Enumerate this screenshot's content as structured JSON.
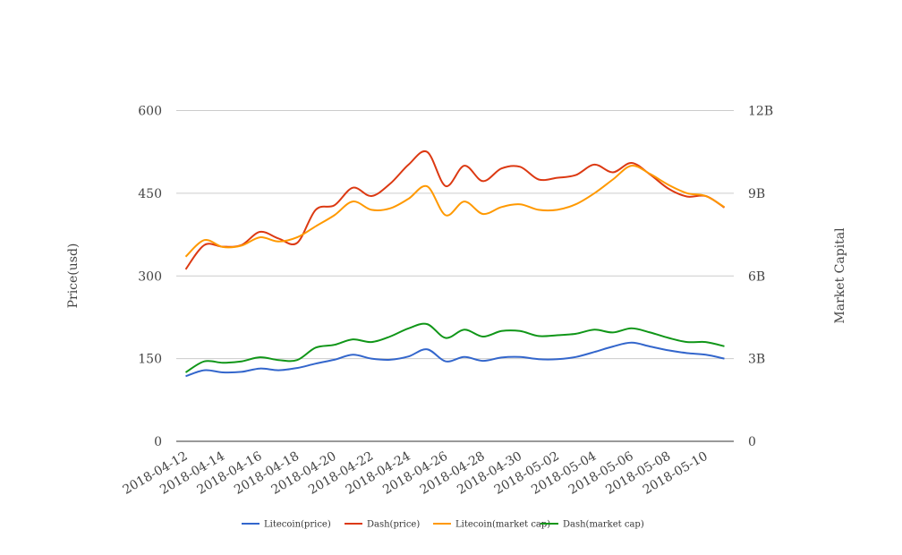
{
  "chart_data": {
    "type": "line",
    "xlabel": "",
    "ylabel": "Price(usd)",
    "y2label": "Market Capital",
    "ylim": [
      0,
      600
    ],
    "y2lim": [
      0,
      12000000000
    ],
    "y_ticks": [
      "0",
      "150",
      "300",
      "450",
      "600"
    ],
    "y2_ticks": [
      "0",
      "3B",
      "6B",
      "9B",
      "12B"
    ],
    "grid": true,
    "legend_position": "bottom",
    "x": [
      "2018-04-12",
      "2018-04-13",
      "2018-04-14",
      "2018-04-15",
      "2018-04-16",
      "2018-04-17",
      "2018-04-18",
      "2018-04-19",
      "2018-04-20",
      "2018-04-21",
      "2018-04-22",
      "2018-04-23",
      "2018-04-24",
      "2018-04-25",
      "2018-04-26",
      "2018-04-27",
      "2018-04-28",
      "2018-04-29",
      "2018-04-30",
      "2018-05-01",
      "2018-05-02",
      "2018-05-03",
      "2018-05-04",
      "2018-05-05",
      "2018-05-06",
      "2018-05-07",
      "2018-05-08",
      "2018-05-09",
      "2018-05-10",
      "2018-05-11"
    ],
    "x_tick_labels": [
      "2018-04-12",
      "2018-04-14",
      "2018-04-16",
      "2018-04-18",
      "2018-04-20",
      "2018-04-22",
      "2018-04-24",
      "2018-04-26",
      "2018-04-28",
      "2018-04-30",
      "2018-05-02",
      "2018-05-04",
      "2018-05-06",
      "2018-05-08",
      "2018-05-10"
    ],
    "series": [
      {
        "name": "Litecoin(price)",
        "color": "#3366cc",
        "axis": "left",
        "values": [
          118,
          129,
          125,
          126,
          132,
          129,
          133,
          141,
          148,
          157,
          150,
          148,
          154,
          167,
          145,
          153,
          146,
          152,
          153,
          149,
          149,
          153,
          162,
          172,
          179,
          172,
          165,
          160,
          157,
          150
        ]
      },
      {
        "name": "Dash(price)",
        "color": "#dc3912",
        "axis": "left",
        "values": [
          312,
          356,
          353,
          356,
          380,
          368,
          360,
          420,
          428,
          460,
          445,
          467,
          502,
          525,
          463,
          500,
          472,
          495,
          498,
          475,
          478,
          483,
          502,
          488,
          505,
          484,
          458,
          444,
          445,
          424
        ]
      },
      {
        "name": "Litecoin(market cap)",
        "color": "#ff9900",
        "axis": "right",
        "values": [
          6700000000,
          7300000000,
          7050000000,
          7100000000,
          7400000000,
          7250000000,
          7400000000,
          7800000000,
          8200000000,
          8700000000,
          8400000000,
          8450000000,
          8800000000,
          9250000000,
          8200000000,
          8700000000,
          8250000000,
          8500000000,
          8600000000,
          8400000000,
          8400000000,
          8600000000,
          9000000000,
          9500000000,
          10000000000,
          9700000000,
          9300000000,
          9000000000,
          8900000000,
          8500000000
        ]
      },
      {
        "name": "Dash(market cap)",
        "color": "#109618",
        "axis": "right",
        "values": [
          2500000000,
          2900000000,
          2850000000,
          2900000000,
          3050000000,
          2950000000,
          2950000000,
          3400000000,
          3500000000,
          3700000000,
          3600000000,
          3800000000,
          4100000000,
          4250000000,
          3750000000,
          4050000000,
          3800000000,
          4000000000,
          4000000000,
          3820000000,
          3850000000,
          3900000000,
          4050000000,
          3950000000,
          4100000000,
          3950000000,
          3750000000,
          3600000000,
          3600000000,
          3450000000
        ]
      }
    ]
  }
}
